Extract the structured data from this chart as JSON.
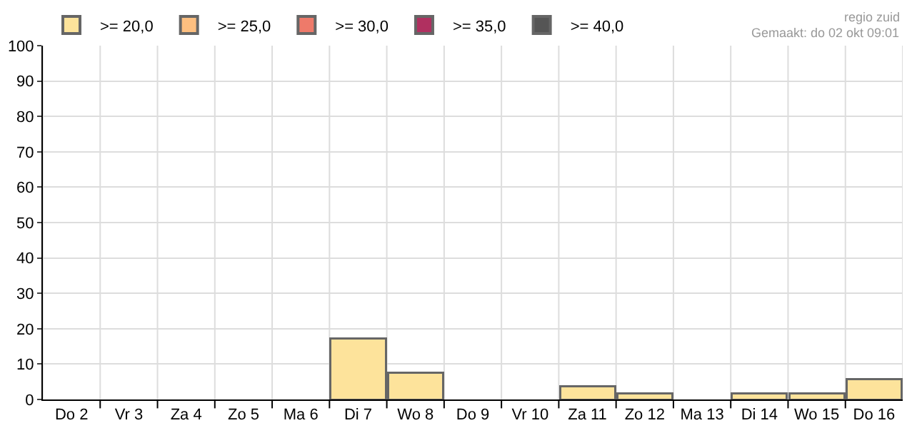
{
  "chart_data": {
    "type": "bar",
    "stacked": true,
    "categories": [
      "Do 2",
      "Vr 3",
      "Za 4",
      "Zo 5",
      "Ma 6",
      "Di 7",
      "Wo 8",
      "Do 9",
      "Vr 10",
      "Za 11",
      "Zo 12",
      "Ma 13",
      "Di 14",
      "Wo 15",
      "Do 16"
    ],
    "series": [
      {
        "name": ">= 20,0",
        "color": "#fde39b",
        "values": [
          null,
          null,
          null,
          null,
          null,
          17.3,
          7.6,
          null,
          null,
          3.7,
          1.8,
          null,
          1.8,
          1.8,
          5.7
        ]
      },
      {
        "name": ">= 25,0",
        "color": "#fdbf80",
        "values": [
          null,
          null,
          null,
          null,
          null,
          null,
          null,
          null,
          null,
          null,
          null,
          null,
          null,
          null,
          null
        ]
      },
      {
        "name": ">= 30,0",
        "color": "#ee7a6a",
        "values": [
          null,
          null,
          null,
          null,
          null,
          null,
          null,
          null,
          null,
          null,
          null,
          null,
          null,
          null,
          null
        ]
      },
      {
        "name": ">= 35,0",
        "color": "#b03060",
        "values": [
          null,
          null,
          null,
          null,
          null,
          null,
          null,
          null,
          null,
          null,
          null,
          null,
          null,
          null,
          null
        ]
      },
      {
        "name": ">= 40,0",
        "color": "#555555",
        "values": [
          null,
          null,
          null,
          null,
          null,
          null,
          null,
          null,
          null,
          null,
          null,
          null,
          null,
          null,
          null
        ]
      }
    ],
    "ylim": [
      0,
      100
    ],
    "yticks": [
      0,
      10,
      20,
      30,
      40,
      50,
      60,
      70,
      80,
      90,
      100
    ],
    "grid": true,
    "legend": "top left",
    "annotations": [
      "regio zuid",
      "Gemaakt: do 02 okt 09:01"
    ]
  }
}
